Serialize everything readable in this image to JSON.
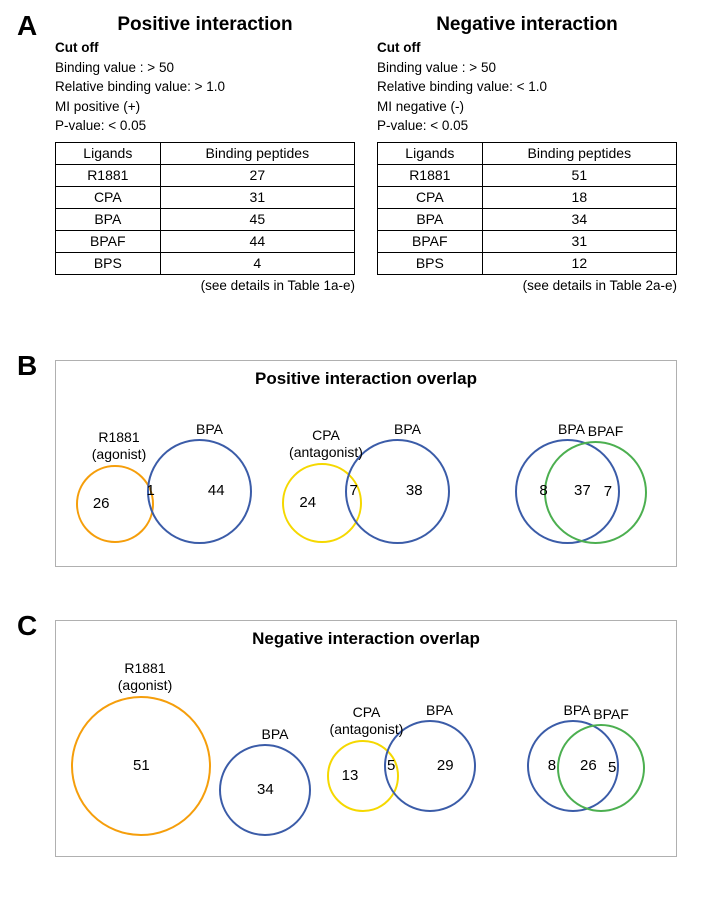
{
  "panels": {
    "a": "A",
    "b": "B",
    "c": "C"
  },
  "panel_a": {
    "positive": {
      "title": "Positive interaction",
      "cutoff_header": "Cut off",
      "cutoffs": [
        "Binding value : > 50",
        "Relative binding value:  > 1.0",
        "MI positive (+)",
        "P-value: < 0.05"
      ],
      "columns": [
        "Ligands",
        "Binding peptides"
      ],
      "rows": [
        {
          "ligand": "R1881",
          "count": 27
        },
        {
          "ligand": "CPA",
          "count": 31
        },
        {
          "ligand": "BPA",
          "count": 45
        },
        {
          "ligand": "BPAF",
          "count": 44
        },
        {
          "ligand": "BPS",
          "count": 4
        }
      ],
      "caption": "(see details in Table 1a-e)"
    },
    "negative": {
      "title": "Negative interaction",
      "cutoff_header": "Cut off",
      "cutoffs": [
        "Binding value : > 50",
        "Relative binding value:  < 1.0",
        "MI negative (-)",
        "P-value: < 0.05"
      ],
      "columns": [
        "Ligands",
        "Binding peptides"
      ],
      "rows": [
        {
          "ligand": "R1881",
          "count": 51
        },
        {
          "ligand": "CPA",
          "count": 18
        },
        {
          "ligand": "BPA",
          "count": 34
        },
        {
          "ligand": "BPAF",
          "count": 31
        },
        {
          "ligand": "BPS",
          "count": 12
        }
      ],
      "caption": "(see details in Table 2a-e)"
    }
  },
  "panel_b": {
    "title": "Positive interaction overlap",
    "pairs": [
      {
        "left_label": "R1881\n(agonist)",
        "right_label": "BPA",
        "left_only": 26,
        "overlap": 1,
        "right_only": 44,
        "left_color": "#f59e0b",
        "right_color": "#3b5ca8",
        "left_size": 78,
        "right_size": 105,
        "sep": -7
      },
      {
        "left_label": "CPA\n(antagonist)",
        "right_label": "BPA",
        "left_only": 24,
        "overlap": 7,
        "right_only": 38,
        "left_color": "#f5d800",
        "right_color": "#3b5ca8",
        "left_size": 80,
        "right_size": 105,
        "sep": -17
      },
      {
        "left_label": "BPA",
        "right_label": "BPAF",
        "left_only": 8,
        "overlap": 37,
        "right_only": 7,
        "left_color": "#3b5ca8",
        "right_color": "#4caf50",
        "left_size": 105,
        "right_size": 103,
        "sep": -76
      }
    ]
  },
  "panel_c": {
    "title": "Negative interaction overlap",
    "pairs": [
      {
        "left_label": "R1881\n(agonist)",
        "right_label": "BPA",
        "left_only": 51,
        "overlap": null,
        "right_only": 34,
        "left_color": "#f59e0b",
        "right_color": "#3b5ca8",
        "left_size": 140,
        "right_size": 92,
        "sep": 8
      },
      {
        "left_label": "CPA\n(antagonist)",
        "right_label": "BPA",
        "left_only": 13,
        "overlap": 5,
        "right_only": 29,
        "left_color": "#f5d800",
        "right_color": "#3b5ca8",
        "left_size": 72,
        "right_size": 92,
        "sep": -15
      },
      {
        "left_label": "BPA",
        "right_label": "BPAF",
        "left_only": 8,
        "overlap": 26,
        "right_only": 5,
        "left_color": "#3b5ca8",
        "right_color": "#4caf50",
        "left_size": 92,
        "right_size": 88,
        "sep": -62
      }
    ]
  },
  "styling": {
    "background_color": "#ffffff",
    "text_color": "#000000",
    "border_color": "#000000",
    "venn_box_border": "#b0b0b0",
    "panel_label_fontsize": 28,
    "title_fontsize": 19,
    "body_fontsize": 14,
    "circle_stroke_width": 2.5
  }
}
